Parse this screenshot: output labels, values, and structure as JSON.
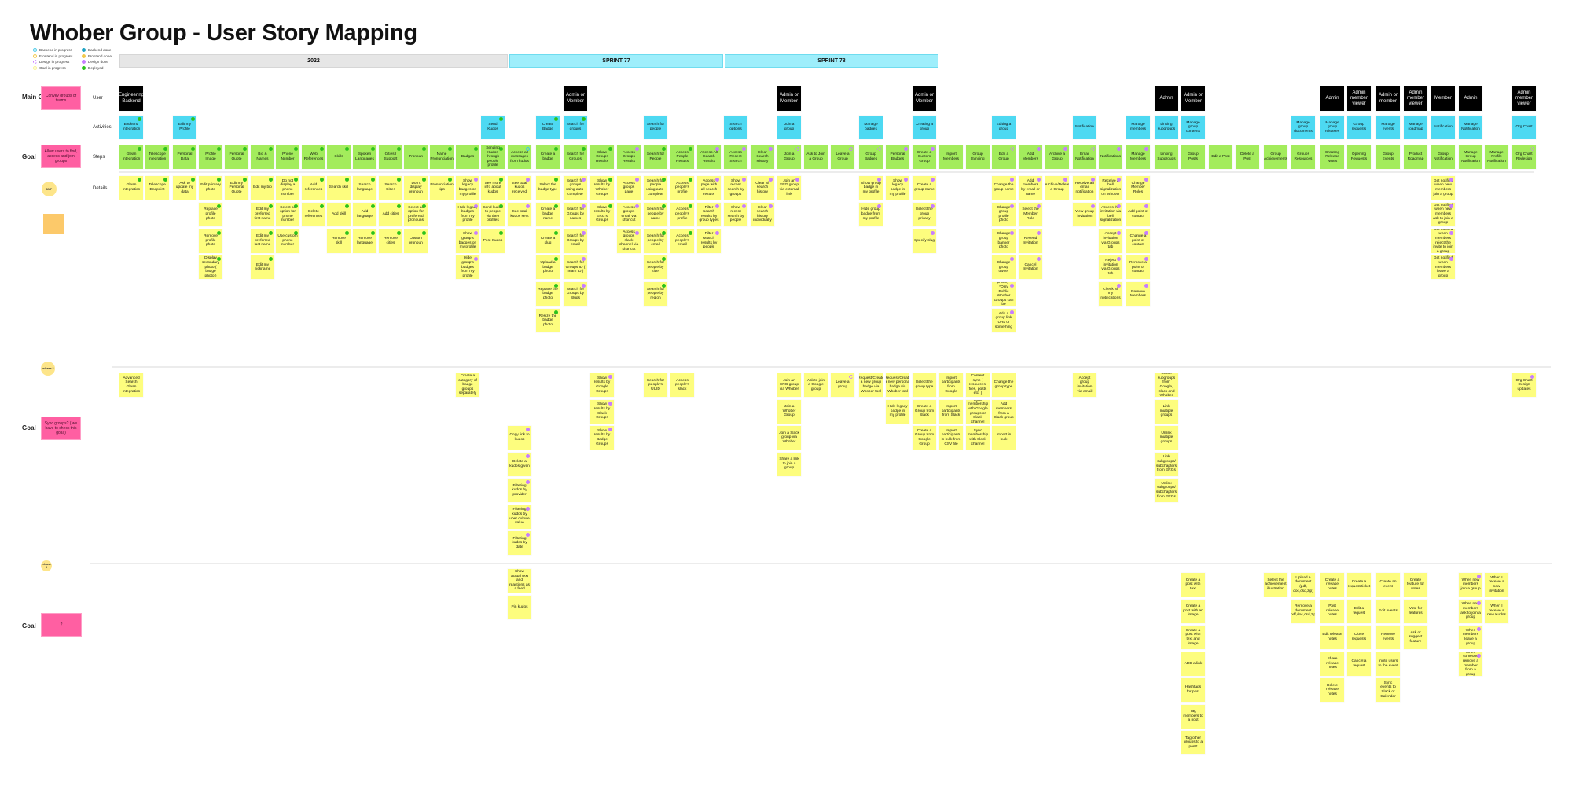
{
  "title": "Whober Group - User Story Mapping",
  "legend": [
    {
      "label": "Backend in progress",
      "status": "backend-in-progress"
    },
    {
      "label": "Frontend in progress",
      "status": "frontend-in-progress"
    },
    {
      "label": "Design in progress",
      "status": "design-in-progress"
    },
    {
      "label": "Goal in progress",
      "status": "goal-in-progress"
    },
    {
      "label": "Backend done",
      "status": "backend-done"
    },
    {
      "label": "Frontend done",
      "status": "frontend-done"
    },
    {
      "label": "Design done",
      "status": "design-done"
    },
    {
      "label": "Deployed",
      "status": "deployed"
    }
  ],
  "status_colors": {
    "backend-in-progress": "#3ec6e6",
    "frontend-in-progress": "#f2c94c",
    "design-in-progress": "#c77dff",
    "goal-in-progress": "#f7f28a",
    "backend-done": "#1fa3c4",
    "frontend-done": "#f2c94c",
    "design-done": "#c77dff",
    "deployed": "#2dc21c"
  },
  "colors": {
    "user": "#000000",
    "activity": "#4dd9f2",
    "step": "#a3ec5c",
    "detail": "#fdfd7e",
    "goal": "#ff5fa2"
  },
  "timeline": [
    {
      "label": "2022",
      "kind": "year"
    },
    {
      "label": "SPRINT 77",
      "kind": "sprint"
    },
    {
      "label": "SPRINT 78",
      "kind": "sprint"
    }
  ],
  "row_labels": {
    "user": "User",
    "activities": "Activities",
    "steps": "Steps",
    "details": "Details"
  },
  "side": {
    "main_goal_label": "Main Goal",
    "goal_label": "Goal",
    "main_goal": "Convey groups of teams",
    "goal_1": "Allow users to find, access and join groups",
    "goal_2": "Sync groups? ( we have to check this goal )",
    "goal_3": "?",
    "mvp": "MVP",
    "release_2": "release 2",
    "release_3": "release 3"
  },
  "columns": [
    {
      "user": "Engineering Backend",
      "activity": "Backend Integration",
      "activity_status": "deployed",
      "step": "Glean Integration",
      "step_status": "deployed",
      "details": [
        "Glean Integration"
      ],
      "detail_status": "deployed",
      "r2": [
        "Advanced Search Glean Integration"
      ]
    },
    {
      "step": "Telescope Integration",
      "step_status": "deployed",
      "details": [
        "Telescope Endpoint"
      ],
      "detail_status": "deployed"
    },
    {
      "activity": "Edit my Profile",
      "activity_status": "deployed",
      "step": "Personal Data",
      "step_status": "deployed",
      "details": [
        "Ask to update my data"
      ],
      "detail_status": "deployed"
    },
    {
      "step": "Profile Image",
      "step_status": "deployed",
      "details": [
        "Edit primary photo",
        "Replace profile photo",
        "Remove profile photo",
        "Display secondary photo ( badge photo )"
      ],
      "detail_status": "deployed"
    },
    {
      "step": "Personal Quote",
      "step_status": "deployed",
      "details": [
        "Edit my Personal Quote"
      ],
      "detail_status": "deployed"
    },
    {
      "step": "Bio & Names",
      "step_status": "deployed",
      "details": [
        "Edit my bio",
        "Edit my preferred first name",
        "Edit my preferred last name",
        "Edit my nickname"
      ],
      "detail_status": "deployed"
    },
    {
      "step": "Phone Number",
      "step_status": "deployed",
      "details": [
        "Do not display a phone number",
        "Select all option for phone number",
        "Use custom phone number"
      ],
      "detail_status": "deployed"
    },
    {
      "step": "Web References",
      "step_status": "deployed",
      "details": [
        "Add references",
        "Delete references"
      ],
      "detail_status": "deployed"
    },
    {
      "step": "Skills",
      "step_status": "deployed",
      "details": [
        "Search skill",
        "Add skill",
        "Remove skill"
      ],
      "detail_status": "deployed"
    },
    {
      "step": "Spoken Languages",
      "step_status": "deployed",
      "details": [
        "Search language",
        "Add language",
        "Remove language"
      ],
      "detail_status": "deployed"
    },
    {
      "step": "Cities I Support",
      "step_status": "deployed",
      "details": [
        "Search Cities",
        "Add cities",
        "Remove cities"
      ],
      "detail_status": "deployed"
    },
    {
      "step": "Pronoun",
      "step_status": "deployed",
      "details": [
        "Don't display pronoun",
        "Select all option for preferred pronouns",
        "Custom pronoun"
      ],
      "detail_status": "deployed"
    },
    {
      "step": "Name Pronunciation",
      "step_status": "deployed",
      "details": [
        "Pronunciation tips"
      ],
      "detail_status": "deployed"
    },
    {
      "step": "Badges",
      "step_status": "deployed",
      "details": [
        "Show legacy badges on my profile",
        "Hide legacy badges from my profile",
        "Show group's badges on my profile",
        "Hide group's badges from my profile"
      ],
      "detail_status": "design-done",
      "r2": [
        "Create a category of badge groups separately"
      ]
    },
    {
      "activity": "Send Kudos",
      "activity_status": "deployed",
      "step": "Sending Kudos through people profile",
      "step_status": "deployed",
      "details": [
        "See more info about kudos",
        "Send kudos to people via their profiles",
        "Post Kudos"
      ],
      "detail_status": "deployed"
    },
    {
      "step": "Access all messages from kudos",
      "step_status": "backend-in-progress",
      "details": [
        "See total kudos received",
        "See total kudos sent"
      ],
      "detail_status": "design-done",
      "r2": [
        "Copy link to kudos",
        "Delete a kudos given",
        "Filtering kudos by provider",
        "Filtering kudos by uber culture value",
        "Filtering kudos by date"
      ],
      "r2_status": "design-done",
      "r3": [
        "Show actual text and reactions as a feed",
        "Pin kudos"
      ]
    },
    {
      "activity": "Create Badge",
      "activity_status": "deployed",
      "step": "Create a badge",
      "step_status": "deployed",
      "details": [
        "Select the badge type",
        "Create a badge name",
        "Create a slug",
        "Upload a badge photo",
        "Replace the badge photo",
        "Resize the badge photo"
      ],
      "detail_status": "deployed"
    },
    {
      "user": "Admin or Member",
      "activity": "Search for groups",
      "activity_status": "deployed",
      "step": "Search for Groups",
      "step_status": "deployed",
      "details": [
        "Search for groups using auto-complete",
        "Search for Groups by names",
        "Search for Groups by email",
        "Search for Groups ID ( Team ID )",
        "Search for Groups by Slugs"
      ],
      "detail_status": "design-done"
    },
    {
      "step": "Show Groups Results",
      "step_status": "deployed",
      "details": [
        "Show results by Whober Groups",
        "Show results by ERG's Groups"
      ],
      "detail_status": "deployed",
      "r2": [
        "Show results by Google Groups",
        "Show results by Slack Groups",
        "Show results by Badge Groups"
      ],
      "r2_status": "design-done"
    },
    {
      "step": "Access Groups Results",
      "step_status": "design-done",
      "details": [
        "Access groups page",
        "Access groups email via shortcut",
        "Access groups slack channel via shortcut"
      ],
      "detail_status": "design-done"
    },
    {
      "activity": "Search for people",
      "step": "Search for People",
      "step_status": "deployed",
      "details": [
        "Search for people using auto-complete",
        "Search for people by name",
        "Search for people by email",
        "Search for people by title",
        "Search for people by region"
      ],
      "detail_status": "deployed",
      "r2": [
        "Search for people's UUID"
      ]
    },
    {
      "step": "Access People Results",
      "step_status": "deployed",
      "details": [
        "Access people's profile",
        "Access people's profile",
        "Access people's email"
      ],
      "detail_status": "deployed",
      "r2": [
        "Access people's slack"
      ]
    },
    {
      "step": "Access All Search Results",
      "step_status": "design-done",
      "details": [
        "Access page with all search results",
        "Filter search results by group types",
        "Filter search results by people"
      ],
      "detail_status": "design-done"
    },
    {
      "activity": "Search options",
      "step": "Access Recent Search",
      "step_status": "design-done",
      "details": [
        "Show recent search by groups",
        "Show recent search by people"
      ],
      "detail_status": "design-done"
    },
    {
      "step": "Clear Search History",
      "step_status": "design-done",
      "details": [
        "Clear all search history",
        "Clear search history individually"
      ],
      "detail_status": "design-done"
    },
    {
      "user": "Admin or Member",
      "activity": "Join a group",
      "step": "Join a Group",
      "step_status": "design-in-progress",
      "details": [
        "Join an ERG group via external link"
      ],
      "detail_status": "design-done",
      "r2": [
        "Join an ERG group via Whober",
        "Join a Whober Group",
        "Join a Slack group via Whober",
        "Share a link to join a group"
      ]
    },
    {
      "step": "Ask to Join a Group",
      "r2": [
        "Ask to join a Google group"
      ]
    },
    {
      "step": "Leave a Group",
      "step_status": "design-in-progress",
      "r2": [
        "Leave a group"
      ],
      "r2_status": "design-in-progress"
    },
    {
      "activity": "Manage badges",
      "step": "Group Badges",
      "step_status": "design-in-progress",
      "details": [
        "Show group badge in my profile",
        "Hide group badge from my profile"
      ],
      "detail_status": "design-done",
      "r2": [
        "Request/Create a new group badge via Whober tool"
      ]
    },
    {
      "step": "Personal Badges",
      "step_status": "design-done",
      "details": [
        "Show legacy badge in my profile"
      ],
      "detail_status": "design-done",
      "r2": [
        "Request/Create a new personal badge via Whober tool",
        "Hide legacy badge in my profile"
      ]
    },
    {
      "user": "Admin or Member",
      "activity": "Creating a group",
      "step": "Create a Custom Group",
      "step_status": "design-done",
      "details": [
        "Create a group name",
        "Select the group privacy",
        "Specify slug"
      ],
      "detail_status": "design-done",
      "r2": [
        "Select the group type",
        "Create a Group from Slack",
        "Create a Group from Google Group"
      ]
    },
    {
      "step": "Import Members",
      "r2": [
        "Import participants from Google",
        "Import participants from Slack",
        "Import participants in bulk from CSV file"
      ]
    },
    {
      "step": "Group Syncing",
      "r2": [
        "Content sync ( resources, files, posts etc. )",
        "Sync membership with Google groups or Slack channel",
        "Sync membership with Slack channel"
      ]
    },
    {
      "activity": "Editing a group",
      "step": "Edit a Group",
      "step_status": "design-in-progress",
      "details": [
        "Change the group name",
        "Change group profile photo",
        "Change group banner photo",
        "Change group owner",
        "Change group privacy* *Only Public Whober Groups can be converted to Private",
        "Add a group link URL or something"
      ],
      "detail_status": "design-done",
      "r2": [
        "Change the group type",
        "Add members from a Slack group",
        "Import in bulk"
      ]
    },
    {
      "step": "Add Members",
      "step_status": "design-done",
      "details": [
        "Add members by email or name",
        "Select the Member Role",
        "Resend Invitation",
        "Cancel Invitation"
      ],
      "detail_status": "design-done"
    },
    {
      "step": "Archive a Group",
      "step_status": "design-done",
      "details": [
        "Archive/Delete a Group"
      ],
      "detail_status": "design-done"
    },
    {
      "activity": "Notification",
      "step": "Email Notification",
      "step_status": "design-in-progress",
      "details": [
        "Receive an email notification",
        "View group invitation"
      ],
      "detail_status": "design-done",
      "r2": [
        "Accept group invitation via email"
      ]
    },
    {
      "step": "Notifications",
      "step_status": "design-done",
      "details": [
        "Receive a bell signalization on Whober",
        "Access the invitation via bell signalization",
        "Accept invitation via Groups tab",
        "Reject invitation via Groups tab",
        "Check all my notifications"
      ],
      "detail_status": "design-done"
    },
    {
      "activity": "Manage members",
      "step": "Manage Members",
      "step_status": "design-done",
      "details": [
        "Change Member Roles",
        "Add point of contact",
        "Change a point of contact",
        "Remove a point of contact",
        "Remove Members"
      ],
      "detail_status": "design-done"
    },
    {
      "user": "Admin",
      "activity": "Linking subgroups",
      "step": "Linking Subgroups",
      "r2": [
        "Unlink subgroups from Google, Slack and Whober",
        "Link multiple groups",
        "Unlink multiple groups",
        "Link subgroups/ subchapters from ERGs",
        "Unlink subgroups/ subchapters from ERGs"
      ]
    },
    {
      "user": "Admin or Member",
      "activity": "Manage group contents",
      "step": "Group Posts",
      "r3": [
        "Create a post with text",
        "Create a post with an image",
        "Create a post with text and image",
        "ADD a link",
        "Hashtags for post",
        "Tag members to a post",
        "Tag other groups to a post*"
      ]
    },
    {
      "step": "Edit a Post"
    },
    {
      "step": "Delete a Post"
    },
    {
      "step": "Group Achievements",
      "r3": [
        "Select the achievement illustration"
      ]
    },
    {
      "activity": "Manage group documents",
      "step": "Groups Resources",
      "r3": [
        "Upload a document (pdf, doc,csd,zip)",
        "Remove a document (pdf,doc,csd,zip)"
      ]
    },
    {
      "user": "Admin",
      "activity": "Manage group releases",
      "step": "Creating Release Notes",
      "r3": [
        "Create a release notes",
        "Post release notes",
        "Edit release notes",
        "Share release notes",
        "Delete release notes"
      ]
    },
    {
      "user": "Admin member viewer",
      "activity": "Group requests",
      "step": "Opening Requests",
      "r3": [
        "Create a request/ticket",
        "Edit a request",
        "Close requests",
        "Cancel a request"
      ]
    },
    {
      "user": "Admin or member",
      "activity": "Manage events",
      "step": "Group Events",
      "r3": [
        "Create an event",
        "Edit events",
        "Remove events",
        "Invite users to the event",
        "Sync events to Slack or Calendar"
      ]
    },
    {
      "user": "Admin member viewer",
      "activity": "Manage roadmap",
      "step": "Product Roadmap",
      "r3": [
        "Create feature for votes",
        "Vote for features",
        "Ask or suggest feature"
      ]
    },
    {
      "user": "Member",
      "activity": "Notification",
      "step": "Group Notification",
      "details": [
        "Get notified when new members join a group",
        "Get notified when new members ask to join a group",
        "Get notified when members reject the invite to join a group",
        "Get notified when members leave a group"
      ],
      "detail_status": "design-done"
    },
    {
      "user": "Admin",
      "activity": "Manage Notification",
      "step": "Manage Group Notification",
      "r3": [
        "When new members join a group",
        "When new members ask to join a group",
        "When members leave a group",
        "When someone remove a member from a group"
      ],
      "r3_status": "design-done"
    },
    {
      "step": "Manage Profile Notification",
      "r3": [
        "When I receive a new invitation",
        "When I receive a new Kudos"
      ]
    },
    {
      "user": "Admin member viewer",
      "activity": "Org Chart",
      "step": "Org Chart Redesign",
      "step_status": "design-in-progress",
      "r2": [
        "Org Chart Design updates"
      ],
      "r2_status": "design-done"
    }
  ]
}
